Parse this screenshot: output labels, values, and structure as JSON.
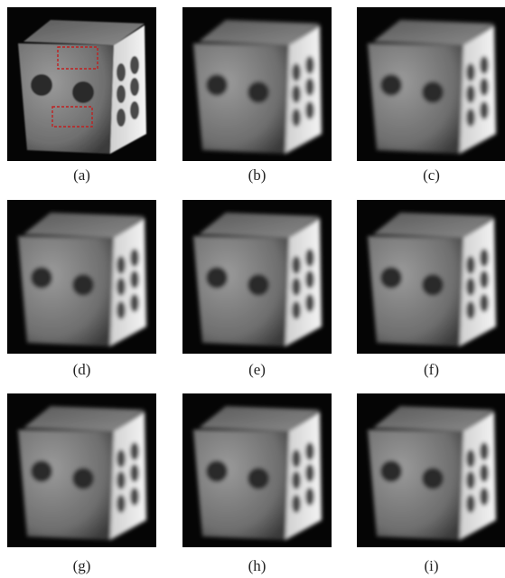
{
  "figure": {
    "captions": [
      "(a)",
      "(b)",
      "(c)",
      "(d)",
      "(e)",
      "(f)",
      "(g)",
      "(h)",
      "(i)"
    ]
  }
}
